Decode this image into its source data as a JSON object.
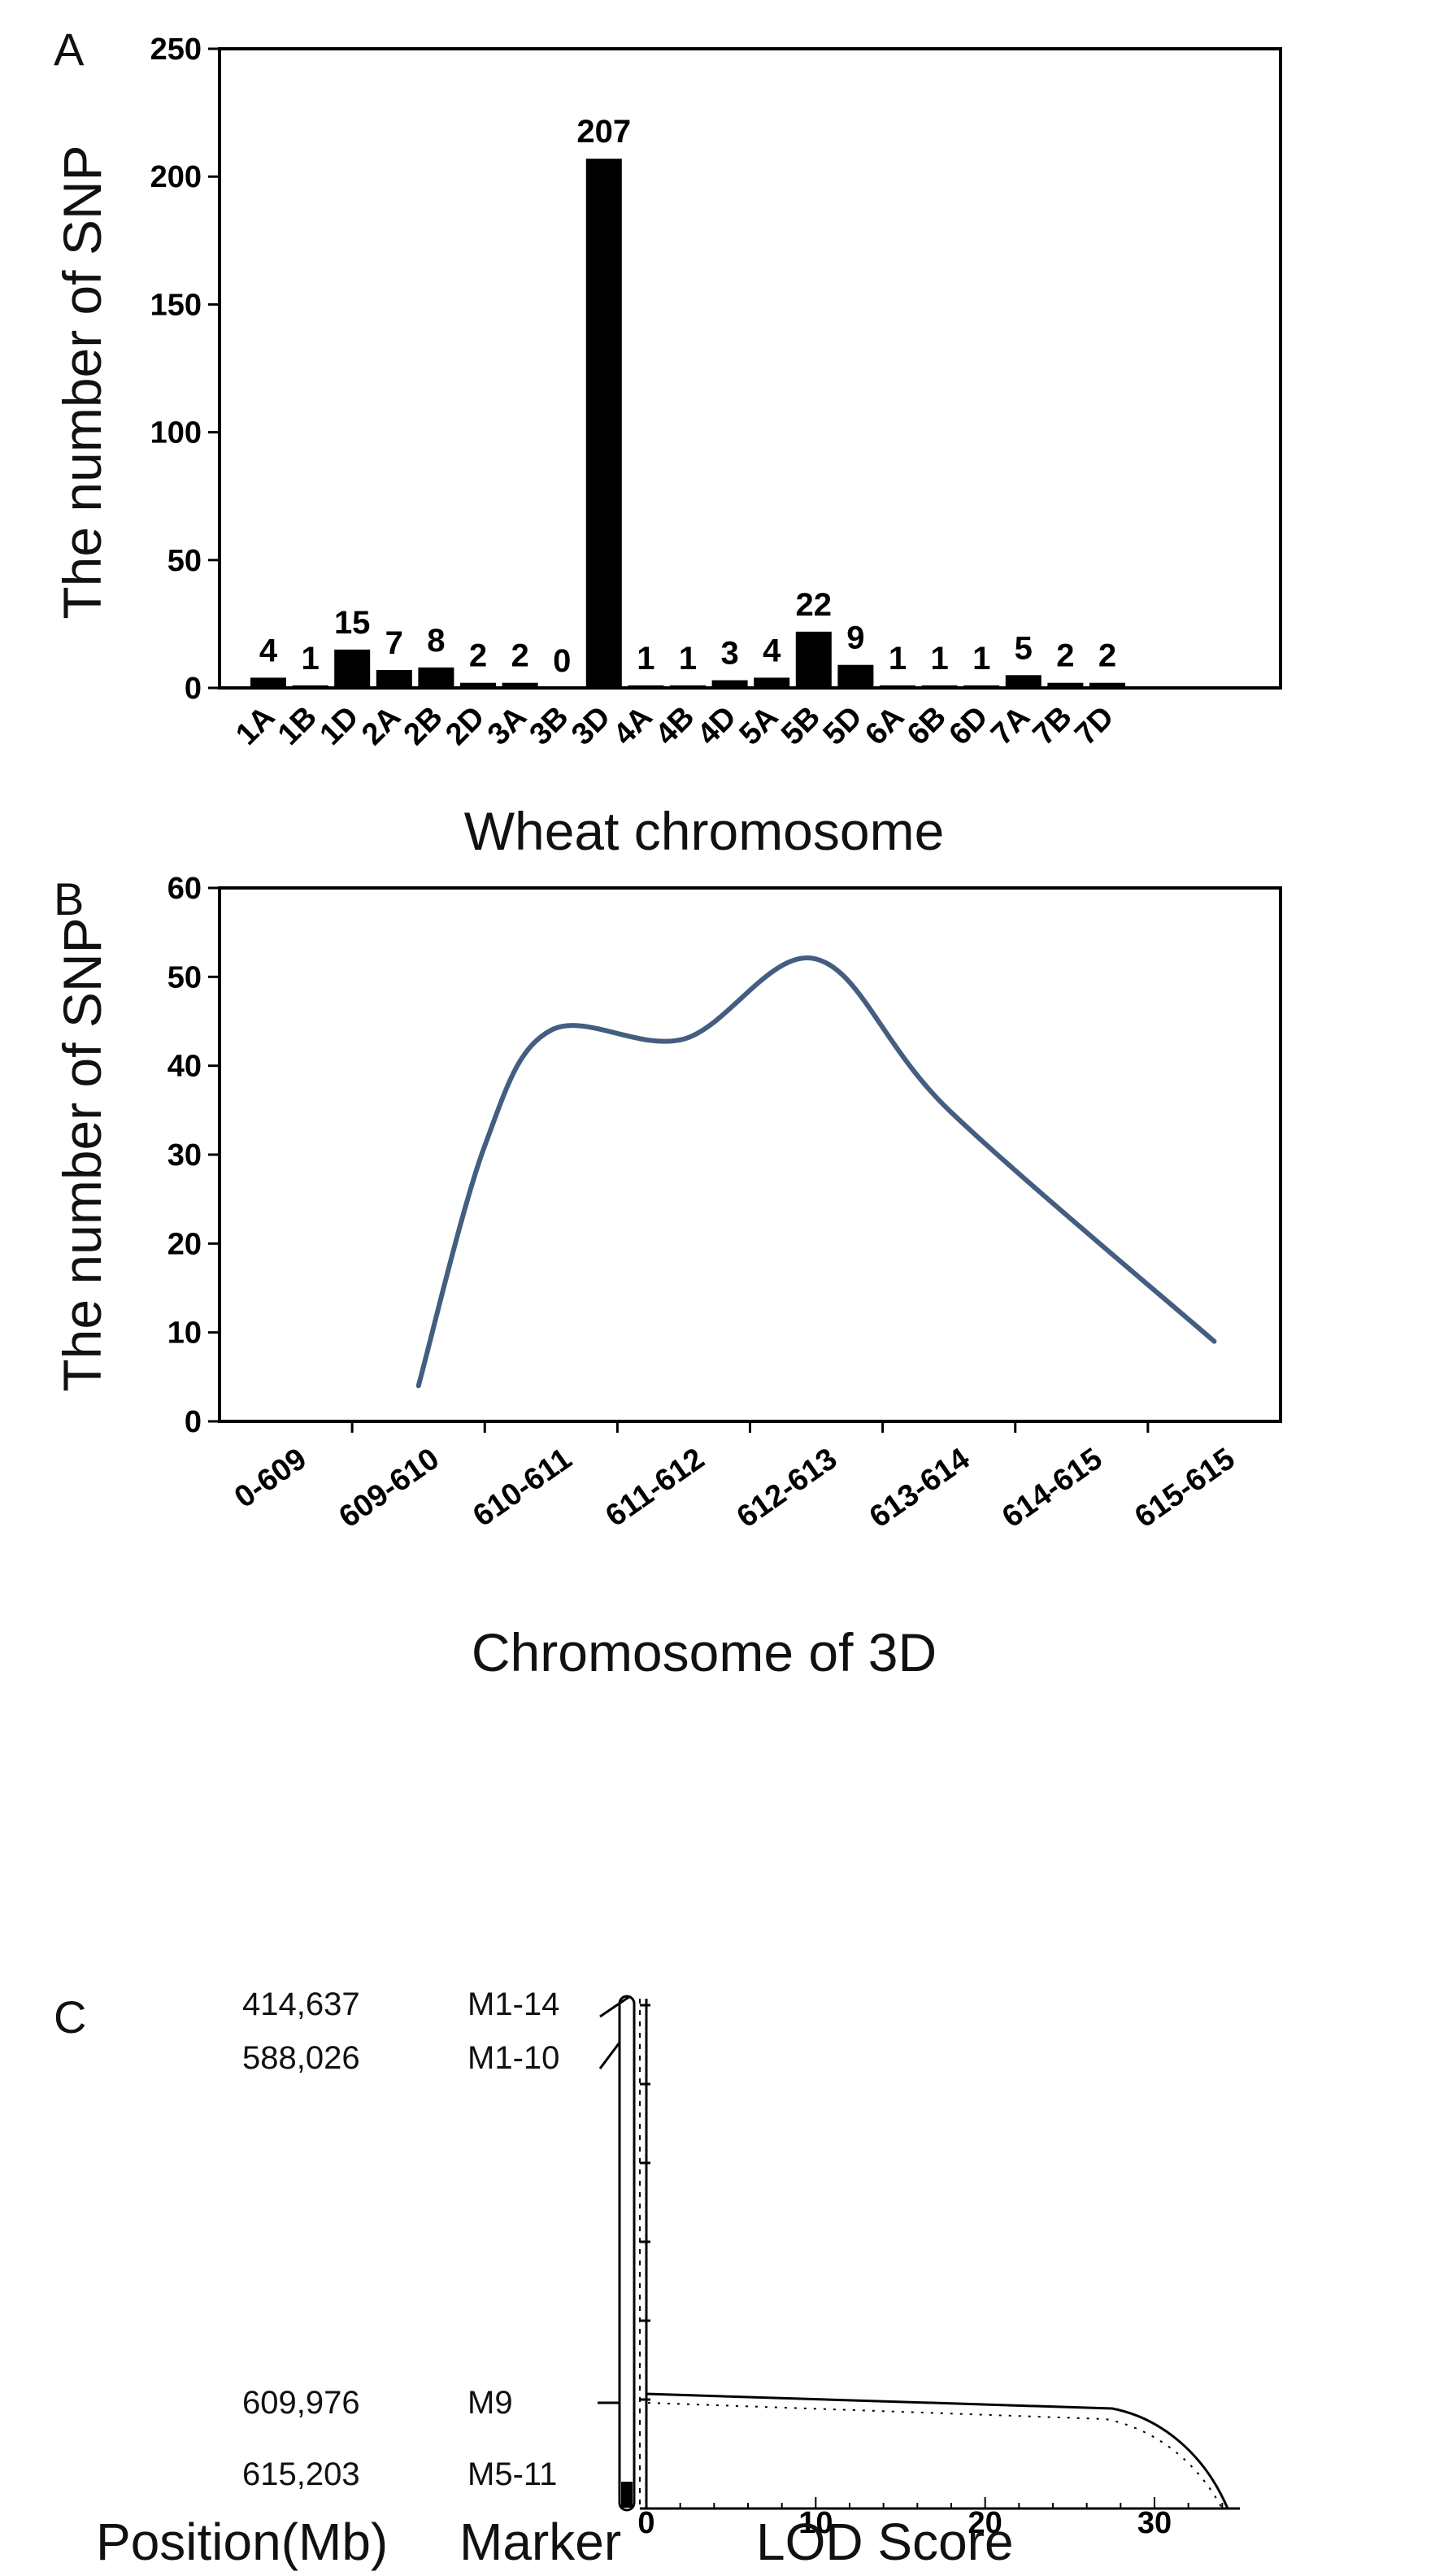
{
  "panels": {
    "a": "A",
    "b": "B",
    "c": "C"
  },
  "chart_data": [
    {
      "type": "bar",
      "xlabel": "Wheat chromosome",
      "ylabel": "The number of SNP",
      "ylim": [
        0,
        250
      ],
      "yticks": [
        0,
        50,
        100,
        150,
        200,
        250
      ],
      "categories": [
        "1A",
        "1B",
        "1D",
        "2A",
        "2B",
        "2D",
        "3A",
        "3B",
        "3D",
        "4A",
        "4B",
        "4D",
        "5A",
        "5B",
        "5D",
        "6A",
        "6B",
        "6D",
        "7A",
        "7B",
        "7D"
      ],
      "values": [
        4,
        1,
        15,
        7,
        8,
        2,
        2,
        0,
        207,
        1,
        1,
        3,
        4,
        22,
        9,
        1,
        1,
        1,
        5,
        2,
        2
      ],
      "color": "#000000"
    },
    {
      "type": "line",
      "xlabel": "Chromosome of 3D",
      "ylabel": "The number of SNP",
      "ylim": [
        0,
        60
      ],
      "yticks": [
        0,
        10,
        20,
        30,
        40,
        50,
        60
      ],
      "categories": [
        "0-609",
        "609-610",
        "610-611",
        "611-612",
        "612-613",
        "613-614",
        "614-615",
        "615-615"
      ],
      "points": [
        {
          "x": 1.5,
          "y": 4
        },
        {
          "x": 2.0,
          "y": 31
        },
        {
          "x": 2.5,
          "y": 44
        },
        {
          "x": 3.5,
          "y": 43
        },
        {
          "x": 4.5,
          "y": 52
        },
        {
          "x": 5.5,
          "y": 35
        },
        {
          "x": 7.5,
          "y": 9
        }
      ],
      "color": "#435e80"
    },
    {
      "type": "line",
      "xlabel": "LOD Score",
      "xticks": [
        0,
        10,
        20,
        30
      ],
      "markers": [
        {
          "position": "414,637",
          "name": "M1-14"
        },
        {
          "position": "588,026",
          "name": "M1-10"
        },
        {
          "position": "609,976",
          "name": "M9"
        },
        {
          "position": "615,203",
          "name": "M5-11"
        }
      ],
      "position_header": "Position(Mb)",
      "marker_header": "Marker"
    }
  ]
}
